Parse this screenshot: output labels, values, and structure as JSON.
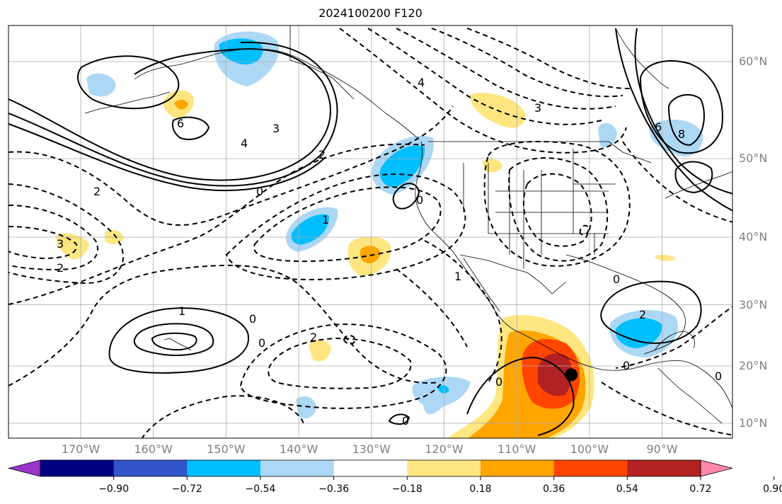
{
  "title": "2024100200 F120",
  "lat_labels": [
    {
      "label": "60°N",
      "lat": 60
    },
    {
      "label": "50°N",
      "lat": 50
    },
    {
      "label": "40°N",
      "lat": 40
    },
    {
      "label": "30°N",
      "lat": 30
    },
    {
      "label": "20°N",
      "lat": 20
    },
    {
      "label": "10°N",
      "lat": 10
    }
  ],
  "lon_labels": [
    {
      "label": "170°W",
      "lon": -170
    },
    {
      "label": "160°W",
      "lon": -160
    },
    {
      "label": "150°W",
      "lon": -150
    },
    {
      "label": "140°W",
      "lon": -140
    },
    {
      "label": "130°W",
      "lon": -130
    },
    {
      "label": "120°W",
      "lon": -120
    },
    {
      "label": "110°W",
      "lon": -110
    },
    {
      "label": "100°W",
      "lon": -100
    },
    {
      "label": "90°W",
      "lon": -90
    }
  ],
  "colorbar": {
    "colors": [
      "#9933cc",
      "#000080",
      "#3355cc",
      "#00bfff",
      "#add8f5",
      "#ffffff",
      "#ffe680",
      "#ffa500",
      "#ff4500",
      "#b22222",
      "#ff88aa"
    ],
    "ticks": [
      "−0.90",
      "−0.72",
      "−0.54",
      "−0.36",
      "−0.18",
      "0.18",
      "0.36",
      "0.54",
      "0.72",
      "0.90"
    ]
  },
  "contour_labels": [
    "0",
    "0",
    "0",
    "0",
    "0",
    "0",
    "0",
    "0",
    "0",
    "1",
    "1",
    "1",
    "2",
    "2",
    "2",
    "2",
    "2",
    "3",
    "3",
    "3",
    "4",
    "4",
    "6",
    "6",
    "8"
  ],
  "marker": {
    "lon": -102.5,
    "lat": 18.5
  }
}
